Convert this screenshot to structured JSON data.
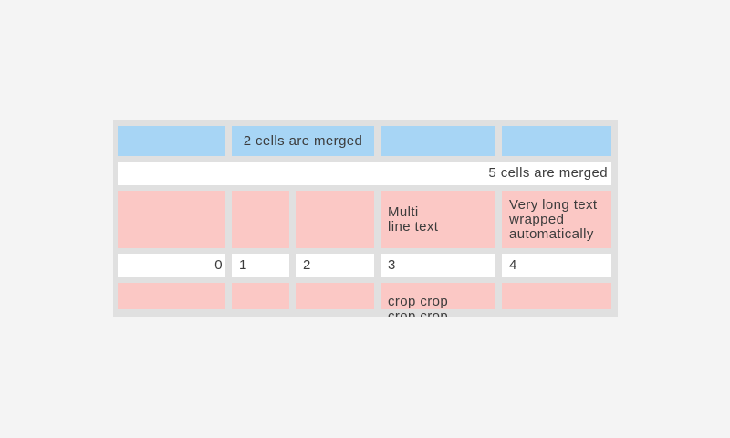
{
  "page": {
    "background_color": "#f4f4f4"
  },
  "table": {
    "border_color": "#e0e0e0",
    "colors": {
      "merged_header_blue": "#a7d5f5",
      "highlight_pink": "#fbc8c5",
      "plain_white": "#ffffff",
      "text": "#3c3c3c"
    },
    "rows": [
      {
        "type": "blue",
        "cells": [
          {
            "text": ""
          },
          {
            "text": "2 cells are merged",
            "colspan": 2,
            "align": "center"
          },
          {
            "text": ""
          },
          {
            "text": ""
          }
        ]
      },
      {
        "type": "white",
        "cells": [
          {
            "text": "5 cells are merged",
            "colspan": 5,
            "align": "right"
          }
        ]
      },
      {
        "type": "pink",
        "cells": [
          {
            "text": ""
          },
          {
            "text": ""
          },
          {
            "text": ""
          },
          {
            "text": "Multi\nline text"
          },
          {
            "text": "Very long text wrapped automatically"
          }
        ]
      },
      {
        "type": "white",
        "cells": [
          {
            "text": "0",
            "align": "right"
          },
          {
            "text": "1"
          },
          {
            "text": "2"
          },
          {
            "text": "3"
          },
          {
            "text": "4"
          }
        ]
      },
      {
        "type": "pink",
        "cells": [
          {
            "text": ""
          },
          {
            "text": ""
          },
          {
            "text": ""
          },
          {
            "text": "crop crop crop crop",
            "cropped": true
          },
          {
            "text": ""
          }
        ]
      }
    ]
  }
}
